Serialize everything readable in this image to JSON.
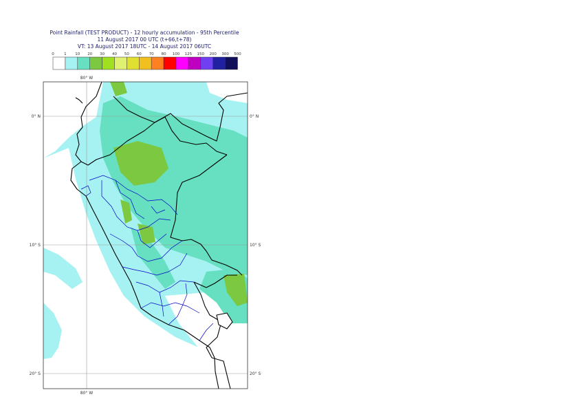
{
  "title": {
    "line1": "Point Rainfall (TEST PRODUCT) - 12 hourly accumulation - 95th Percentile",
    "line2": "11 August 2017 00 UTC (t+66,t+78)",
    "line3": "VT: 13 August 2017 18UTC - 14 August 2017 06UTC"
  },
  "legend": {
    "thresholds": [
      "0",
      "1",
      "10",
      "20",
      "30",
      "40",
      "50",
      "60",
      "70",
      "80",
      "100",
      "125",
      "150",
      "200",
      "300",
      "500"
    ],
    "colors": [
      "#ffffff",
      "#a6f2f2",
      "#66e0c0",
      "#7cc840",
      "#a0e020",
      "#e0f070",
      "#e0e030",
      "#f0c020",
      "#ff8020",
      "#ff0000",
      "#ff00ff",
      "#c000c0",
      "#7040f0",
      "#2020a0",
      "#10105a"
    ]
  },
  "map": {
    "lon_top_label": "80° W",
    "lon_bottom_label": "80° W",
    "lat_labels_left": [
      "0° N",
      "10° S",
      "20° S"
    ],
    "lat_labels_right": [
      "0° N",
      "10° S",
      "20° S"
    ],
    "land_outline_color": "#000000",
    "admin_boundary_color": "#0000c8",
    "gridline_color": "#999999"
  }
}
